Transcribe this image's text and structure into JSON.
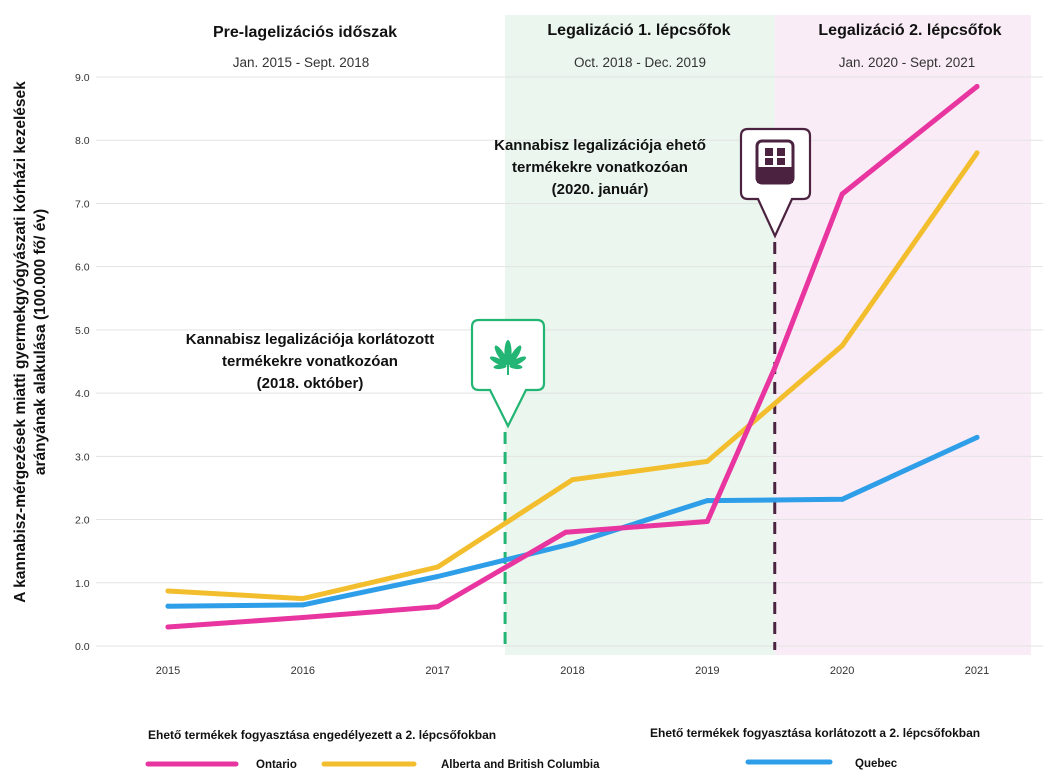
{
  "chart_data": {
    "type": "line",
    "ylabel_line1": "A kannabisz-mérgezések miatti gyermekgyógyászati kórházi kezelések",
    "ylabel_line2": "arányának alakulása (100.000 fő/ év)",
    "ylim": [
      0,
      9.0
    ],
    "yticks": [
      "0.0",
      "1.0",
      "2.0",
      "3.0",
      "4.0",
      "5.0",
      "6.0",
      "7.0",
      "8.0",
      "9.0"
    ],
    "x": [
      "2015",
      "2016",
      "2017",
      "2018",
      "2019",
      "2020",
      "2021"
    ],
    "grid": true,
    "series": [
      {
        "name": "Ontario",
        "color": "#e8359f",
        "points": [
          [
            2015,
            0.3
          ],
          [
            2016,
            0.45
          ],
          [
            2017,
            0.62
          ],
          [
            2017.95,
            1.8
          ],
          [
            2019,
            1.97
          ],
          [
            2019.5,
            4.4
          ],
          [
            2020,
            7.15
          ],
          [
            2021,
            8.85
          ]
        ]
      },
      {
        "name": "Alberta and British Columbia",
        "color": "#f3be2e",
        "points": [
          [
            2015,
            0.87
          ],
          [
            2016,
            0.75
          ],
          [
            2017,
            1.25
          ],
          [
            2018,
            2.63
          ],
          [
            2019,
            2.92
          ],
          [
            2020,
            4.75
          ],
          [
            2021,
            7.8
          ]
        ]
      },
      {
        "name": "Quebec",
        "color": "#2e9ee8",
        "points": [
          [
            2015,
            0.63
          ],
          [
            2016,
            0.65
          ],
          [
            2017,
            1.1
          ],
          [
            2018,
            1.62
          ],
          [
            2019,
            2.3
          ],
          [
            2020,
            2.32
          ],
          [
            2021,
            3.3
          ]
        ]
      }
    ],
    "phases": [
      {
        "title": "Pre-lagelizációs időszak",
        "dates": "Jan. 2015 - Sept. 2018",
        "from": 2014.6,
        "to": 2017.5,
        "color": "#ffffff"
      },
      {
        "title": "Legalizáció 1. lépcsőfok",
        "dates": "Oct. 2018 - Dec. 2019",
        "from": 2017.5,
        "to": 2019.5,
        "color": "#eaf6ee"
      },
      {
        "title": "Legalizáció 2. lépcsőfok",
        "dates": "Jan. 2020 - Sept. 2021",
        "from": 2019.5,
        "to": 2021.4,
        "color": "#f9ecf7"
      }
    ],
    "events": [
      {
        "x": 2017.5,
        "color": "#22b573",
        "label_lines": [
          "Kannabisz legalizációja korlátozott",
          "termékekre vonatkozóan",
          "(2018. október)"
        ],
        "icon": "cannabis-leaf-icon"
      },
      {
        "x": 2019.5,
        "color": "#4b2340",
        "label_lines": [
          "Kannabisz legalizációja ehető",
          "termékekre vonatkozóan",
          "(2020. január)"
        ],
        "icon": "edibles-icon"
      }
    ],
    "legend": {
      "left_heading": "Ehető termékek fogyasztása engedélyezett a 2. lépcsőfokban",
      "right_heading": "Ehető termékek fogyasztása korlátozott a 2. lépcsőfokban"
    }
  }
}
